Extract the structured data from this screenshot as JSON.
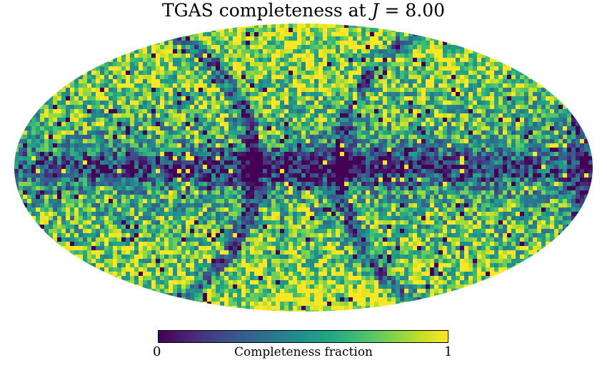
{
  "title": {
    "prefix": "TGAS completeness at ",
    "var": "J",
    "suffix": " = 8.00"
  },
  "colorbar": {
    "min_label": "0",
    "max_label": "1",
    "label": "Completeness fraction",
    "colormap": "viridis",
    "stops": [
      "#440154",
      "#482475",
      "#414487",
      "#355f8d",
      "#2a788e",
      "#21918c",
      "#22a884",
      "#44bf70",
      "#7ad151",
      "#bddf26",
      "#fde725"
    ]
  },
  "map": {
    "projection": "Mollweide",
    "quantity": "completeness fraction",
    "range": [
      0,
      1
    ]
  }
}
